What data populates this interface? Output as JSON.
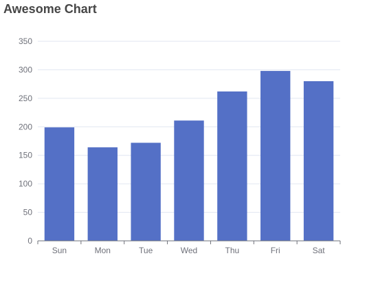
{
  "chart_data": {
    "type": "bar",
    "title": "Awesome Chart",
    "categories": [
      "Sun",
      "Mon",
      "Tue",
      "Wed",
      "Thu",
      "Fri",
      "Sat"
    ],
    "values": [
      199,
      164,
      172,
      211,
      262,
      298,
      280
    ],
    "xlabel": "",
    "ylabel": "",
    "ylim": [
      0,
      350
    ],
    "yticks": [
      0,
      50,
      100,
      150,
      200,
      250,
      300,
      350
    ],
    "grid": true,
    "legend": "none"
  },
  "colors": {
    "bar": "#5470c6",
    "grid": "#e0e6f1",
    "axis": "#6e7079",
    "label": "#6e7079",
    "title": "#464646"
  }
}
